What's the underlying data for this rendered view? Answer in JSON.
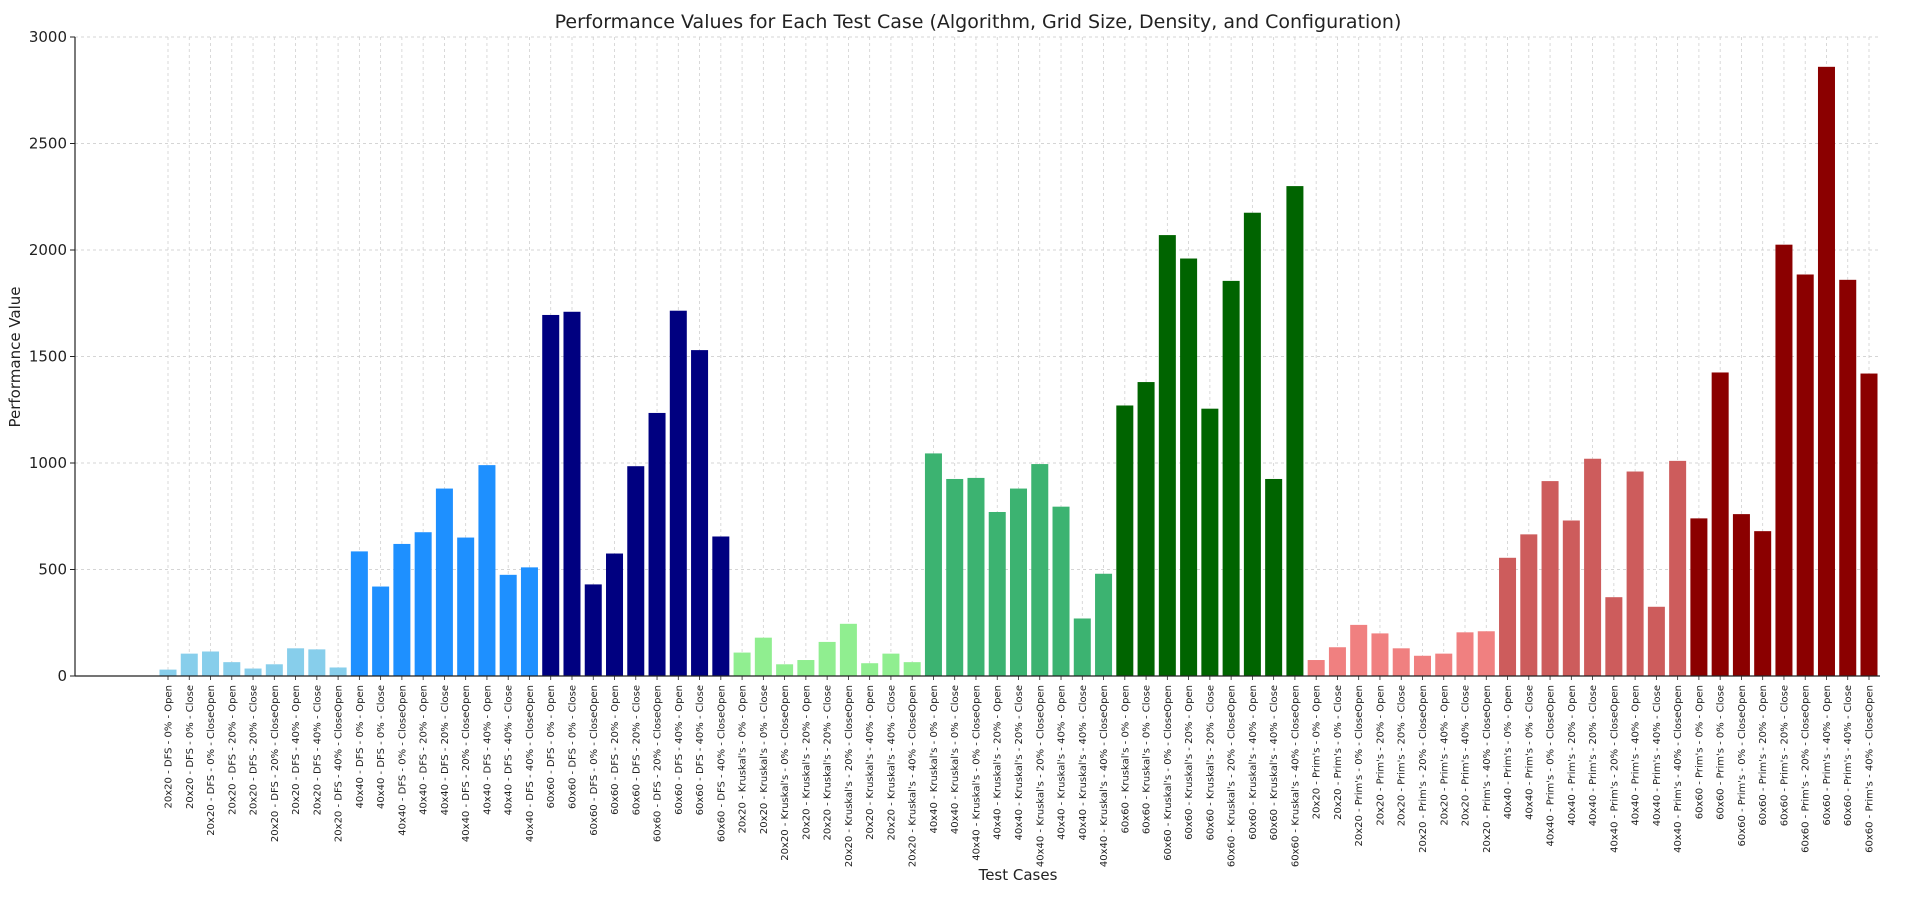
{
  "chart_data": {
    "type": "bar",
    "title": "Performance Values for Each Test Case (Algorithm, Grid Size, Density, and Configuration)",
    "xlabel": "Test Cases",
    "ylabel": "Performance Value",
    "ylim": [
      0,
      3000
    ],
    "yticks": [
      0,
      500,
      1000,
      1500,
      2000,
      2500,
      3000
    ],
    "grid": true,
    "categories": [
      "20x20 - DFS - 0% - Open",
      "20x20 - DFS - 0% - Close",
      "20x20 - DFS - 0% - CloseOpen",
      "20x20 - DFS - 20% - Open",
      "20x20 - DFS - 20% - Close",
      "20x20 - DFS - 20% - CloseOpen",
      "20x20 - DFS - 40% - Open",
      "20x20 - DFS - 40% - Close",
      "20x20 - DFS - 40% - CloseOpen",
      "40x40 - DFS - 0% - Open",
      "40x40 - DFS - 0% - Close",
      "40x40 - DFS - 0% - CloseOpen",
      "40x40 - DFS - 20% - Open",
      "40x40 - DFS - 20% - Close",
      "40x40 - DFS - 20% - CloseOpen",
      "40x40 - DFS - 40% - Open",
      "40x40 - DFS - 40% - Close",
      "40x40 - DFS - 40% - CloseOpen",
      "60x60 - DFS - 0% - Open",
      "60x60 - DFS - 0% - Close",
      "60x60 - DFS - 0% - CloseOpen",
      "60x60 - DFS - 20% - Open",
      "60x60 - DFS - 20% - Close",
      "60x60 - DFS - 20% - CloseOpen",
      "60x60 - DFS - 40% - Open",
      "60x60 - DFS - 40% - Close",
      "60x60 - DFS - 40% - CloseOpen",
      "20x20 - Kruskal's - 0% - Open",
      "20x20 - Kruskal's - 0% - Close",
      "20x20 - Kruskal's - 0% - CloseOpen",
      "20x20 - Kruskal's - 20% - Open",
      "20x20 - Kruskal's - 20% - Close",
      "20x20 - Kruskal's - 20% - CloseOpen",
      "20x20 - Kruskal's - 40% - Open",
      "20x20 - Kruskal's - 40% - Close",
      "20x20 - Kruskal's - 40% - CloseOpen",
      "40x40 - Kruskal's - 0% - Open",
      "40x40 - Kruskal's - 0% - Close",
      "40x40 - Kruskal's - 0% - CloseOpen",
      "40x40 - Kruskal's - 20% - Open",
      "40x40 - Kruskal's - 20% - Close",
      "40x40 - Kruskal's - 20% - CloseOpen",
      "40x40 - Kruskal's - 40% - Open",
      "40x40 - Kruskal's - 40% - Close",
      "40x40 - Kruskal's - 40% - CloseOpen",
      "60x60 - Kruskal's - 0% - Open",
      "60x60 - Kruskal's - 0% - Close",
      "60x60 - Kruskal's - 0% - CloseOpen",
      "60x60 - Kruskal's - 20% - Open",
      "60x60 - Kruskal's - 20% - Close",
      "60x60 - Kruskal's - 20% - CloseOpen",
      "60x60 - Kruskal's - 40% - Open",
      "60x60 - Kruskal's - 40% - Close",
      "60x60 - Kruskal's - 40% - CloseOpen",
      "20x20 - Prim's - 0% - Open",
      "20x20 - Prim's - 0% - Close",
      "20x20 - Prim's - 0% - CloseOpen",
      "20x20 - Prim's - 20% - Open",
      "20x20 - Prim's - 20% - Close",
      "20x20 - Prim's - 20% - CloseOpen",
      "20x20 - Prim's - 40% - Open",
      "20x20 - Prim's - 40% - Close",
      "20x20 - Prim's - 40% - CloseOpen",
      "40x40 - Prim's - 0% - Open",
      "40x40 - Prim's - 0% - Close",
      "40x40 - Prim's - 0% - CloseOpen",
      "40x40 - Prim's - 20% - Open",
      "40x40 - Prim's - 20% - Close",
      "40x40 - Prim's - 20% - CloseOpen",
      "40x40 - Prim's - 40% - Open",
      "40x40 - Prim's - 40% - Close",
      "40x40 - Prim's - 40% - CloseOpen",
      "60x60 - Prim's - 0% - Open",
      "60x60 - Prim's - 0% - Close",
      "60x60 - Prim's - 0% - CloseOpen",
      "60x60 - Prim's - 20% - Open",
      "60x60 - Prim's - 20% - Close",
      "60x60 - Prim's - 20% - CloseOpen",
      "60x60 - Prim's - 40% - Open",
      "60x60 - Prim's - 40% - Close",
      "60x60 - Prim's - 40% - CloseOpen"
    ],
    "values": [
      30,
      105,
      115,
      65,
      35,
      55,
      130,
      125,
      40,
      585,
      420,
      620,
      675,
      880,
      650,
      990,
      475,
      510,
      1695,
      1710,
      430,
      575,
      985,
      1235,
      1715,
      1530,
      655,
      110,
      180,
      55,
      75,
      160,
      245,
      60,
      105,
      65,
      1045,
      925,
      930,
      770,
      880,
      995,
      795,
      270,
      480,
      1270,
      1380,
      2070,
      1960,
      1255,
      1855,
      2175,
      925,
      2300,
      75,
      135,
      240,
      200,
      130,
      95,
      105,
      205,
      210,
      555,
      665,
      915,
      730,
      1020,
      370,
      960,
      325,
      1010,
      740,
      1425,
      760,
      680,
      2025,
      1885,
      2860,
      1860,
      1420
    ],
    "colors": [
      "#87ceeb",
      "#87ceeb",
      "#87ceeb",
      "#87ceeb",
      "#87ceeb",
      "#87ceeb",
      "#87ceeb",
      "#87ceeb",
      "#87ceeb",
      "#1e90ff",
      "#1e90ff",
      "#1e90ff",
      "#1e90ff",
      "#1e90ff",
      "#1e90ff",
      "#1e90ff",
      "#1e90ff",
      "#1e90ff",
      "#000080",
      "#000080",
      "#000080",
      "#000080",
      "#000080",
      "#000080",
      "#000080",
      "#000080",
      "#000080",
      "#90ee90",
      "#90ee90",
      "#90ee90",
      "#90ee90",
      "#90ee90",
      "#90ee90",
      "#90ee90",
      "#90ee90",
      "#90ee90",
      "#3cb371",
      "#3cb371",
      "#3cb371",
      "#3cb371",
      "#3cb371",
      "#3cb371",
      "#3cb371",
      "#3cb371",
      "#3cb371",
      "#006400",
      "#006400",
      "#006400",
      "#006400",
      "#006400",
      "#006400",
      "#006400",
      "#006400",
      "#006400",
      "#f08080",
      "#f08080",
      "#f08080",
      "#f08080",
      "#f08080",
      "#f08080",
      "#f08080",
      "#f08080",
      "#f08080",
      "#cd5c5c",
      "#cd5c5c",
      "#cd5c5c",
      "#cd5c5c",
      "#cd5c5c",
      "#cd5c5c",
      "#cd5c5c",
      "#cd5c5c",
      "#cd5c5c",
      "#8b0000",
      "#8b0000",
      "#8b0000",
      "#8b0000",
      "#8b0000",
      "#8b0000",
      "#8b0000",
      "#8b0000",
      "#8b0000"
    ]
  }
}
